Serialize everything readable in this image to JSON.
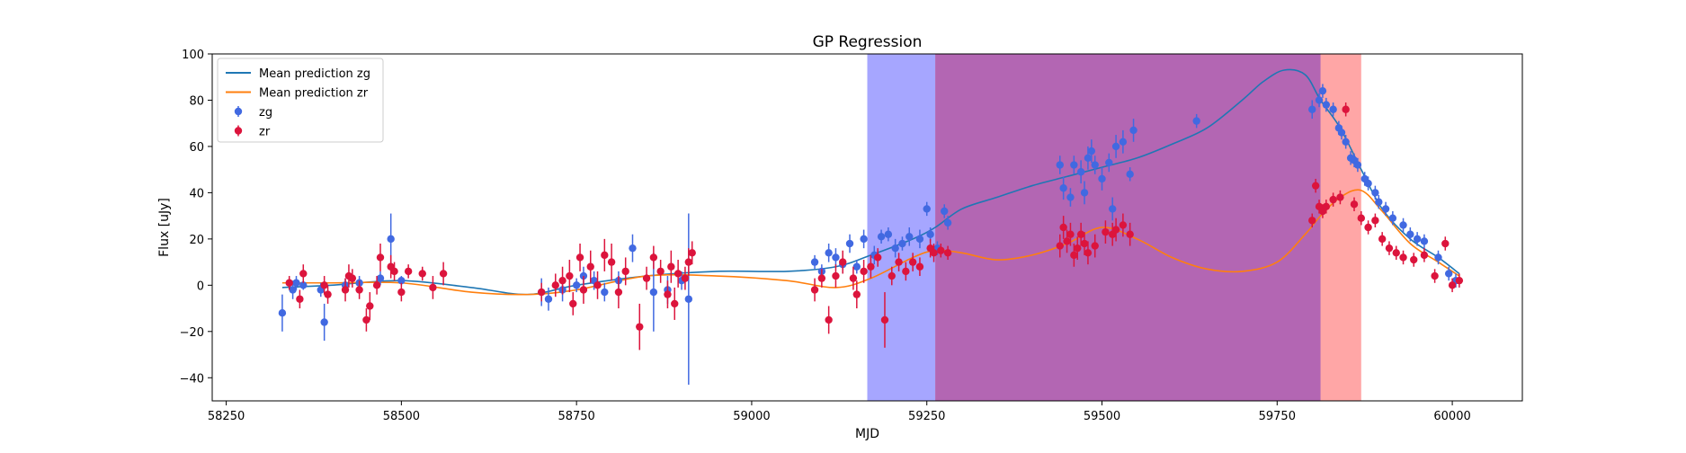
{
  "chart_data": {
    "type": "scatter",
    "title": "GP Regression",
    "xlabel": "MJD",
    "ylabel": "Flux [uJy]",
    "xlim": [
      58230,
      60100
    ],
    "ylim": [
      -50,
      100
    ],
    "xticks": [
      58250,
      58500,
      58750,
      59000,
      59250,
      59500,
      59750,
      60000
    ],
    "yticks": [
      -40,
      -20,
      0,
      20,
      40,
      60,
      80,
      100
    ],
    "grid": false,
    "legend_position": "top-left",
    "colors": {
      "zg": "#4169e1",
      "zr": "#dc143c",
      "mean_zg": "#1f77b4",
      "mean_zr": "#ff7f0e",
      "span_blue": "#0000ff",
      "span_purple": "#800080",
      "span_red": "#ff0000"
    },
    "legend": [
      {
        "label": "Mean prediction zg",
        "kind": "line",
        "color": "#1f77b4"
      },
      {
        "label": "Mean prediction zr",
        "kind": "line",
        "color": "#ff7f0e"
      },
      {
        "label": "zg",
        "kind": "errorbar",
        "color": "#4169e1"
      },
      {
        "label": "zr",
        "kind": "errorbar",
        "color": "#dc143c"
      }
    ],
    "shaded_regions": [
      {
        "x0": 59165,
        "x1": 59262,
        "color": "#0000ff",
        "alpha": 0.35
      },
      {
        "x0": 59262,
        "x1": 59812,
        "color": "#800080",
        "alpha": 0.6
      },
      {
        "x0": 59812,
        "x1": 59870,
        "color": "#ff0000",
        "alpha": 0.35
      }
    ],
    "series": [
      {
        "name": "Mean prediction zg",
        "kind": "line",
        "x": [
          58330,
          58400,
          58500,
          58600,
          58680,
          58750,
          58850,
          58950,
          59050,
          59120,
          59170,
          59230,
          59262,
          59300,
          59350,
          59400,
          59450,
          59500,
          59550,
          59600,
          59650,
          59700,
          59730,
          59760,
          59790,
          59812,
          59840,
          59870,
          59900,
          59940,
          59980,
          60010
        ],
        "y": [
          -1,
          0,
          2,
          -1,
          -4,
          0,
          4,
          6,
          6,
          8,
          13,
          20,
          25,
          33,
          38,
          43,
          47,
          51,
          55,
          61,
          68,
          80,
          88,
          93,
          91,
          80,
          68,
          50,
          33,
          20,
          12,
          5
        ]
      },
      {
        "name": "Mean prediction zr",
        "kind": "line",
        "x": [
          58330,
          58400,
          58500,
          58600,
          58680,
          58750,
          58850,
          58950,
          59050,
          59120,
          59170,
          59230,
          59262,
          59300,
          59350,
          59400,
          59450,
          59500,
          59550,
          59600,
          59650,
          59700,
          59750,
          59790,
          59812,
          59840,
          59870,
          59900,
          59940,
          59980,
          60010
        ],
        "y": [
          1,
          1,
          1,
          -3,
          -4,
          -2,
          4,
          4,
          2,
          -1,
          3,
          12,
          15,
          14,
          11,
          13,
          18,
          25,
          20,
          12,
          7,
          6,
          10,
          22,
          30,
          38,
          41,
          32,
          18,
          10,
          4
        ]
      },
      {
        "name": "zg",
        "kind": "errorbar",
        "points": [
          [
            58330,
            -12,
            8
          ],
          [
            58345,
            -2,
            4
          ],
          [
            58350,
            1,
            3
          ],
          [
            58360,
            0,
            2
          ],
          [
            58385,
            -2,
            3
          ],
          [
            58390,
            -16,
            8
          ],
          [
            58420,
            0,
            3
          ],
          [
            58440,
            1,
            3
          ],
          [
            58470,
            3,
            3
          ],
          [
            58485,
            20,
            11
          ],
          [
            58500,
            2,
            2
          ],
          [
            58700,
            -3,
            6
          ],
          [
            58710,
            -6,
            5
          ],
          [
            58730,
            -2,
            5
          ],
          [
            58750,
            0,
            3
          ],
          [
            58760,
            4,
            4
          ],
          [
            58775,
            2,
            4
          ],
          [
            58790,
            -3,
            4
          ],
          [
            58810,
            2,
            4
          ],
          [
            58830,
            16,
            6
          ],
          [
            58860,
            -3,
            17
          ],
          [
            58880,
            -2,
            6
          ],
          [
            58900,
            2,
            4
          ],
          [
            58910,
            -6,
            37
          ],
          [
            59090,
            10,
            3
          ],
          [
            59100,
            6,
            3
          ],
          [
            59110,
            14,
            4
          ],
          [
            59120,
            12,
            4
          ],
          [
            59130,
            9,
            4
          ],
          [
            59140,
            18,
            4
          ],
          [
            59150,
            8,
            3
          ],
          [
            59160,
            20,
            4
          ],
          [
            59175,
            13,
            4
          ],
          [
            59185,
            21,
            3
          ],
          [
            59195,
            22,
            3
          ],
          [
            59205,
            16,
            4
          ],
          [
            59215,
            18,
            3
          ],
          [
            59225,
            21,
            4
          ],
          [
            59240,
            20,
            4
          ],
          [
            59250,
            33,
            3
          ],
          [
            59255,
            22,
            3
          ],
          [
            59265,
            16,
            3
          ],
          [
            59275,
            32,
            3
          ],
          [
            59280,
            27,
            3
          ],
          [
            59440,
            52,
            4
          ],
          [
            59445,
            42,
            5
          ],
          [
            59455,
            38,
            4
          ],
          [
            59460,
            52,
            4
          ],
          [
            59470,
            49,
            5
          ],
          [
            59475,
            40,
            5
          ],
          [
            59480,
            55,
            5
          ],
          [
            59485,
            58,
            5
          ],
          [
            59490,
            52,
            4
          ],
          [
            59500,
            46,
            5
          ],
          [
            59510,
            53,
            4
          ],
          [
            59515,
            33,
            5
          ],
          [
            59520,
            60,
            5
          ],
          [
            59530,
            62,
            5
          ],
          [
            59540,
            48,
            3
          ],
          [
            59545,
            67,
            5
          ],
          [
            59635,
            71,
            3
          ],
          [
            59800,
            76,
            4
          ],
          [
            59810,
            80,
            3
          ],
          [
            59815,
            84,
            3
          ],
          [
            59820,
            78,
            3
          ],
          [
            59830,
            76,
            3
          ],
          [
            59838,
            68,
            3
          ],
          [
            59842,
            66,
            3
          ],
          [
            59848,
            62,
            3
          ],
          [
            59855,
            55,
            3
          ],
          [
            59860,
            54,
            3
          ],
          [
            59865,
            52,
            3
          ],
          [
            59875,
            46,
            3
          ],
          [
            59880,
            44,
            3
          ],
          [
            59890,
            40,
            3
          ],
          [
            59895,
            36,
            3
          ],
          [
            59905,
            33,
            3
          ],
          [
            59915,
            29,
            3
          ],
          [
            59930,
            26,
            3
          ],
          [
            59940,
            22,
            3
          ],
          [
            59950,
            20,
            3
          ],
          [
            59960,
            19,
            3
          ],
          [
            59980,
            12,
            3
          ],
          [
            59995,
            5,
            3
          ],
          [
            60005,
            2,
            3
          ]
        ]
      },
      {
        "name": "zr",
        "kind": "errorbar",
        "points": [
          [
            58340,
            1,
            3
          ],
          [
            58355,
            -6,
            4
          ],
          [
            58360,
            5,
            4
          ],
          [
            58390,
            0,
            4
          ],
          [
            58395,
            -4,
            4
          ],
          [
            58420,
            -2,
            5
          ],
          [
            58425,
            4,
            5
          ],
          [
            58430,
            3,
            4
          ],
          [
            58440,
            -2,
            4
          ],
          [
            58450,
            -15,
            5
          ],
          [
            58455,
            -9,
            6
          ],
          [
            58465,
            0,
            4
          ],
          [
            58470,
            12,
            6
          ],
          [
            58485,
            8,
            5
          ],
          [
            58490,
            6,
            4
          ],
          [
            58500,
            -3,
            4
          ],
          [
            58510,
            6,
            3
          ],
          [
            58530,
            5,
            3
          ],
          [
            58545,
            -1,
            5
          ],
          [
            58560,
            5,
            5
          ],
          [
            58700,
            -3,
            4
          ],
          [
            58720,
            0,
            5
          ],
          [
            58730,
            2,
            6
          ],
          [
            58740,
            4,
            7
          ],
          [
            58745,
            -8,
            5
          ],
          [
            58755,
            12,
            6
          ],
          [
            58760,
            -2,
            6
          ],
          [
            58770,
            8,
            7
          ],
          [
            58780,
            0,
            6
          ],
          [
            58790,
            13,
            7
          ],
          [
            58800,
            10,
            8
          ],
          [
            58810,
            -3,
            7
          ],
          [
            58820,
            6,
            6
          ],
          [
            58840,
            -18,
            10
          ],
          [
            58850,
            3,
            5
          ],
          [
            58860,
            12,
            5
          ],
          [
            58870,
            6,
            5
          ],
          [
            58880,
            -4,
            6
          ],
          [
            58885,
            8,
            7
          ],
          [
            58890,
            -8,
            7
          ],
          [
            58895,
            5,
            6
          ],
          [
            58905,
            3,
            5
          ],
          [
            58910,
            10,
            6
          ],
          [
            58915,
            14,
            5
          ],
          [
            59090,
            -2,
            5
          ],
          [
            59100,
            3,
            4
          ],
          [
            59110,
            -15,
            6
          ],
          [
            59120,
            4,
            5
          ],
          [
            59130,
            10,
            5
          ],
          [
            59145,
            3,
            5
          ],
          [
            59150,
            -4,
            6
          ],
          [
            59160,
            6,
            5
          ],
          [
            59170,
            8,
            5
          ],
          [
            59180,
            12,
            4
          ],
          [
            59190,
            -15,
            12
          ],
          [
            59200,
            4,
            4
          ],
          [
            59210,
            10,
            4
          ],
          [
            59220,
            6,
            4
          ],
          [
            59230,
            10,
            4
          ],
          [
            59240,
            8,
            4
          ],
          [
            59255,
            16,
            4
          ],
          [
            59260,
            14,
            4
          ],
          [
            59270,
            15,
            3
          ],
          [
            59280,
            14,
            3
          ],
          [
            59440,
            17,
            5
          ],
          [
            59445,
            25,
            5
          ],
          [
            59450,
            19,
            5
          ],
          [
            59455,
            22,
            5
          ],
          [
            59460,
            13,
            5
          ],
          [
            59465,
            16,
            5
          ],
          [
            59470,
            22,
            5
          ],
          [
            59475,
            18,
            5
          ],
          [
            59480,
            14,
            5
          ],
          [
            59490,
            17,
            5
          ],
          [
            59505,
            23,
            5
          ],
          [
            59515,
            22,
            5
          ],
          [
            59520,
            24,
            5
          ],
          [
            59530,
            26,
            5
          ],
          [
            59540,
            22,
            5
          ],
          [
            59800,
            28,
            3
          ],
          [
            59805,
            43,
            3
          ],
          [
            59810,
            34,
            3
          ],
          [
            59815,
            32,
            3
          ],
          [
            59820,
            34,
            3
          ],
          [
            59830,
            37,
            3
          ],
          [
            59840,
            38,
            3
          ],
          [
            59848,
            76,
            3
          ],
          [
            59860,
            35,
            3
          ],
          [
            59870,
            29,
            3
          ],
          [
            59880,
            25,
            3
          ],
          [
            59890,
            28,
            3
          ],
          [
            59900,
            20,
            3
          ],
          [
            59910,
            16,
            3
          ],
          [
            59920,
            14,
            3
          ],
          [
            59930,
            12,
            3
          ],
          [
            59945,
            11,
            3
          ],
          [
            59960,
            13,
            3
          ],
          [
            59975,
            4,
            3
          ],
          [
            59990,
            18,
            3
          ],
          [
            60000,
            0,
            3
          ],
          [
            60010,
            2,
            3
          ]
        ]
      }
    ]
  }
}
